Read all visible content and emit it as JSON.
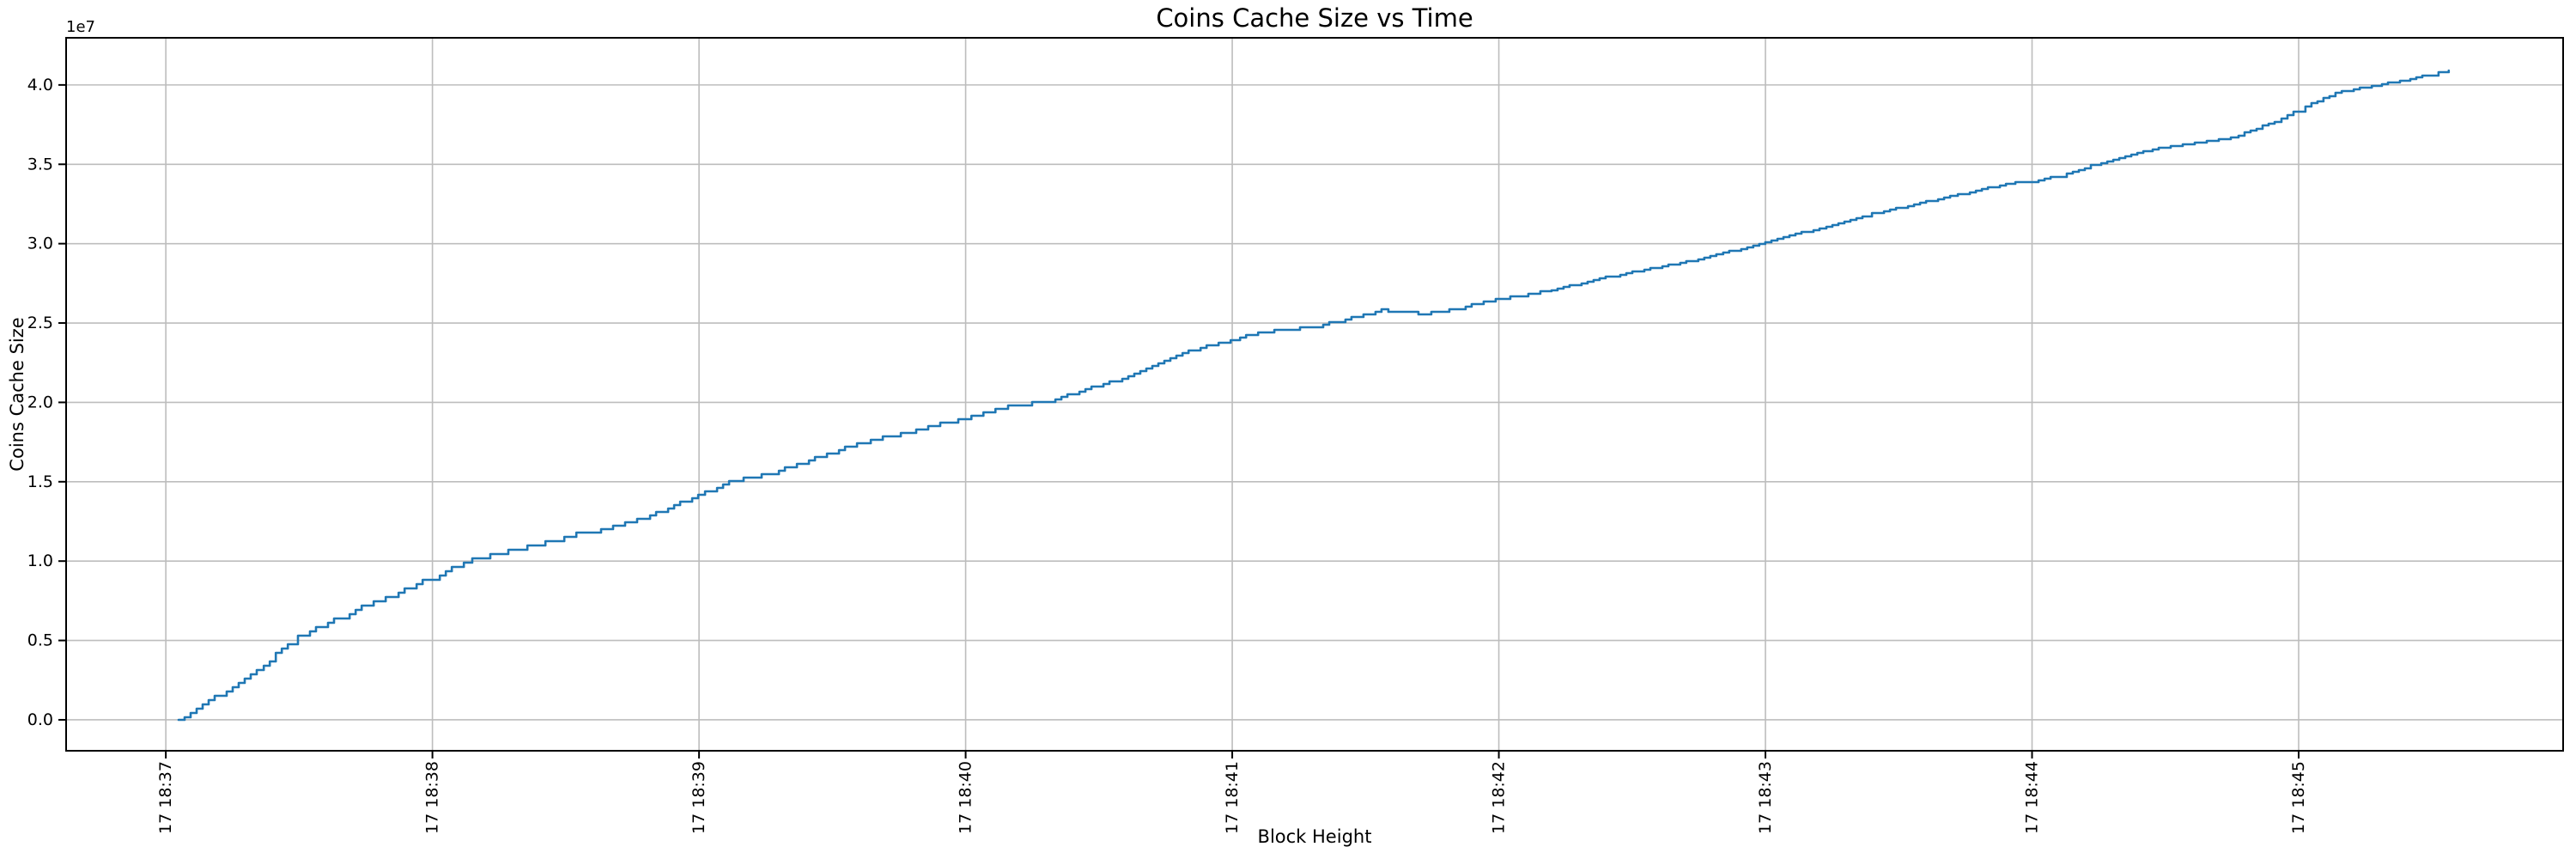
{
  "chart_data": {
    "type": "line",
    "title": "Coins Cache Size vs Time",
    "xlabel": "Block Height",
    "ylabel": "Coins Cache Size",
    "y_offset_text": "1e7",
    "grid": true,
    "legend": "none",
    "background_color": "#ffffff",
    "grid_color": "#bdbdbd",
    "spine_color": "#000000",
    "x_unit": "minutes after first tick (17 18:37)",
    "y_unit": "1e7",
    "x_tick_labels": [
      "17 18:37",
      "17 18:38",
      "17 18:39",
      "17 18:40",
      "17 18:41",
      "17 18:42",
      "17 18:43",
      "17 18:44",
      "17 18:45"
    ],
    "x_tick_values": [
      0,
      1,
      2,
      3,
      4,
      5,
      6,
      7,
      8
    ],
    "y_tick_labels": [
      "0.0",
      "0.5",
      "1.0",
      "1.5",
      "2.0",
      "2.5",
      "3.0",
      "3.5",
      "4.0"
    ],
    "y_tick_values": [
      0.0,
      0.5,
      1.0,
      1.5,
      2.0,
      2.5,
      3.0,
      3.5,
      4.0
    ],
    "xlim": [
      -0.374,
      8.992
    ],
    "ylim": [
      -0.195,
      4.297
    ],
    "series": [
      {
        "name": "coins cache size",
        "color": "#1f77b4",
        "line_width": 2.6,
        "style": "stepped-line",
        "points": [
          [
            0.048,
            0.0
          ],
          [
            0.345,
            0.31
          ],
          [
            0.473,
            0.5
          ],
          [
            0.667,
            0.66
          ],
          [
            0.828,
            0.77
          ],
          [
            1.005,
            0.9
          ],
          [
            1.127,
            1.0
          ],
          [
            1.311,
            1.07
          ],
          [
            1.472,
            1.14
          ],
          [
            1.559,
            1.185
          ],
          [
            1.61,
            1.19
          ],
          [
            1.794,
            1.27
          ],
          [
            2.0,
            1.42
          ],
          [
            2.122,
            1.5
          ],
          [
            2.277,
            1.56
          ],
          [
            2.599,
            1.74
          ],
          [
            2.792,
            1.82
          ],
          [
            2.999,
            1.9
          ],
          [
            3.114,
            1.96
          ],
          [
            3.269,
            2.0
          ],
          [
            3.314,
            2.01
          ],
          [
            3.565,
            2.14
          ],
          [
            3.791,
            2.3
          ],
          [
            4.007,
            2.4
          ],
          [
            4.113,
            2.44
          ],
          [
            4.209,
            2.46
          ],
          [
            4.296,
            2.47
          ],
          [
            4.402,
            2.52
          ],
          [
            4.563,
            2.58
          ],
          [
            4.724,
            2.555
          ],
          [
            4.853,
            2.6
          ],
          [
            4.998,
            2.65
          ],
          [
            5.175,
            2.7
          ],
          [
            5.433,
            2.8
          ],
          [
            5.658,
            2.87
          ],
          [
            5.819,
            2.93
          ],
          [
            6.0,
            3.01
          ],
          [
            6.206,
            3.1
          ],
          [
            6.377,
            3.18
          ],
          [
            6.699,
            3.3
          ],
          [
            6.915,
            3.38
          ],
          [
            7.002,
            3.39
          ],
          [
            7.108,
            3.43
          ],
          [
            7.237,
            3.5
          ],
          [
            7.43,
            3.59
          ],
          [
            7.752,
            3.67
          ],
          [
            7.913,
            3.77
          ],
          [
            8.003,
            3.85
          ],
          [
            8.139,
            3.95
          ],
          [
            8.29,
            4.0
          ],
          [
            8.396,
            4.03
          ],
          [
            8.502,
            4.07
          ],
          [
            8.563,
            4.09
          ]
        ]
      }
    ]
  }
}
